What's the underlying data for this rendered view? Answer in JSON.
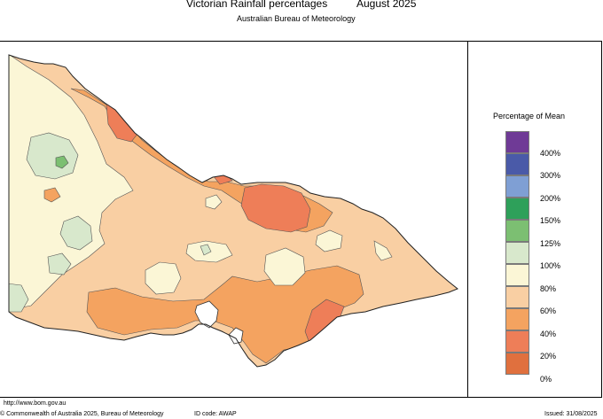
{
  "header": {
    "title": "Victorian Rainfall percentages",
    "period": "August 2025",
    "subtitle": "Australian Bureau of Meteorology"
  },
  "legend": {
    "title": "Percentage of Mean",
    "items": [
      {
        "label": "400%",
        "color": "#6f3a96"
      },
      {
        "label": "300%",
        "color": "#4a5aa8"
      },
      {
        "label": "200%",
        "color": "#7f9fd4"
      },
      {
        "label": "150%",
        "color": "#2ea05a"
      },
      {
        "label": "125%",
        "color": "#7cbf72"
      },
      {
        "label": "100%",
        "color": "#d8e8cc"
      },
      {
        "label": "80%",
        "color": "#fbf6d6"
      },
      {
        "label": "60%",
        "color": "#f9cfa3"
      },
      {
        "label": "40%",
        "color": "#f4a360"
      },
      {
        "label": "20%",
        "color": "#ee7e58"
      },
      {
        "label": "0%",
        "color": "#e0703e"
      }
    ]
  },
  "map_colors": {
    "above_mean": "#d8e8cc",
    "well_above": "#7cbf72",
    "near_80_100": "#fbf6d6",
    "range_60_80": "#f9cfa3",
    "range_40_60": "#f4a360",
    "range_20_40": "#ee7e58"
  },
  "footer": {
    "url": "http://www.bom.gov.au",
    "copyright": "© Commonwealth of Australia 2025, Bureau of Meteorology",
    "id_code": "ID code: AWAP",
    "issued": "Issued: 31/08/2025"
  }
}
